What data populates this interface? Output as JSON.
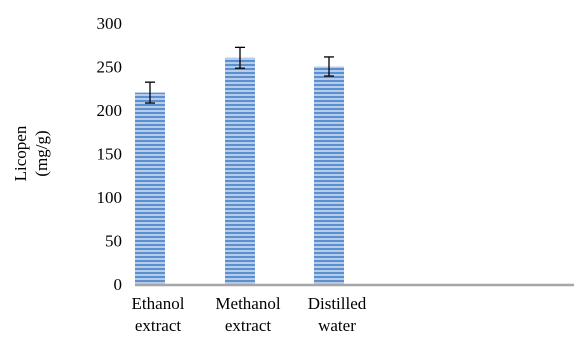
{
  "chart_data": {
    "type": "bar",
    "categories": [
      [
        "Ethanol",
        "extract"
      ],
      [
        "Methanol",
        "extract"
      ],
      [
        "Distilled",
        "water"
      ]
    ],
    "values": [
      220,
      260,
      250
    ],
    "errors": [
      12,
      12,
      11
    ],
    "ylabel": [
      "Licopen",
      "(mg/g)"
    ],
    "xlabel": "",
    "title": "",
    "ylim": [
      0,
      300
    ],
    "yticks": [
      0,
      50,
      100,
      150,
      200,
      250,
      300
    ],
    "grid": false,
    "legend": "none",
    "bar_color": "#5B8FD0",
    "stripe_color": "#FFFFFF",
    "axis_color": "#A6A6A6"
  }
}
